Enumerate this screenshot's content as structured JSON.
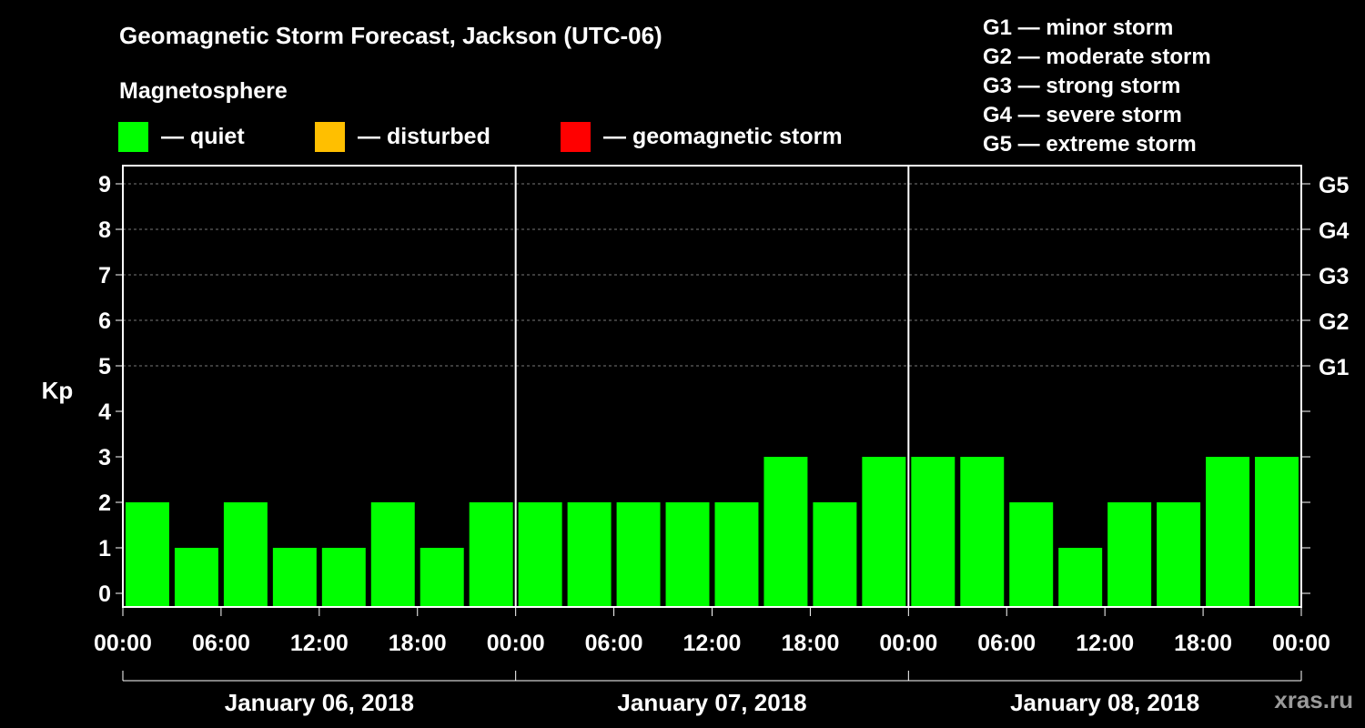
{
  "chart_data": {
    "type": "bar",
    "title": "Geomagnetic Storm Forecast, Jackson (UTC-06)",
    "subtitle": "Magnetosphere",
    "ylabel": "Kp",
    "ylim": [
      0,
      9
    ],
    "yticks": [
      "0",
      "1",
      "2",
      "3",
      "4",
      "5",
      "6",
      "7",
      "8",
      "9"
    ],
    "right_axis_labels": [
      {
        "kp": 5,
        "label": "G1"
      },
      {
        "kp": 6,
        "label": "G2"
      },
      {
        "kp": 7,
        "label": "G3"
      },
      {
        "kp": 8,
        "label": "G4"
      },
      {
        "kp": 9,
        "label": "G5"
      }
    ],
    "xtick_labels": [
      "00:00",
      "06:00",
      "12:00",
      "18:00",
      "00:00",
      "06:00",
      "12:00",
      "18:00",
      "00:00",
      "06:00",
      "12:00",
      "18:00",
      "00:00"
    ],
    "days": [
      "January 06, 2018",
      "January 07, 2018",
      "January 08, 2018"
    ],
    "interval_hours": 3,
    "values": [
      2,
      1,
      2,
      1,
      1,
      2,
      1,
      2,
      2,
      2,
      2,
      2,
      2,
      3,
      2,
      3,
      3,
      3,
      2,
      1,
      2,
      2,
      3,
      3
    ],
    "legend": [
      {
        "label": "— quiet",
        "color": "#00ff00"
      },
      {
        "label": "— disturbed",
        "color": "#ffbf00"
      },
      {
        "label": "— geomagnetic storm",
        "color": "#ff0000"
      }
    ],
    "storm_levels": [
      "G1 — minor storm",
      "G2 — moderate storm",
      "G3 — strong storm",
      "G4 — severe storm",
      "G5 — extreme storm"
    ],
    "grid": true
  },
  "watermark": "xras.ru"
}
